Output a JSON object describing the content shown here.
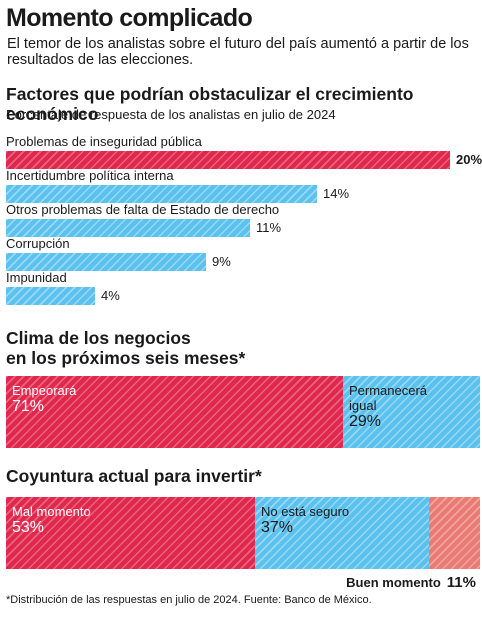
{
  "header": {
    "title": "Momento complicado",
    "subtitle": "El temor de los analistas sobre el futuro del país aumentó a partir de los resultados de las elecciones."
  },
  "chart_data": [
    {
      "type": "bar",
      "orientation": "horizontal",
      "title": "Factores que podrían obstaculizar el crecimiento económico",
      "subtitle": "Porcentaje de respuesta de los analistas en julio de 2024",
      "categories": [
        "Problemas de inseguridad pública",
        "Incertidumbre política interna",
        "Otros problemas de falta de Estado de derecho",
        "Corrupción",
        "Impunidad"
      ],
      "values": [
        20,
        14,
        11,
        9,
        4
      ],
      "value_labels": [
        "20%",
        "14%",
        "11%",
        "9%",
        "4%"
      ],
      "colors": [
        "#e0284c",
        "#5bc1ee",
        "#5bc1ee",
        "#5bc1ee",
        "#5bc1ee"
      ],
      "xlim": [
        0,
        20
      ]
    },
    {
      "type": "bar",
      "orientation": "stacked-horizontal",
      "title": "Clima de los negocios en los próximos seis meses*",
      "title_lines": [
        "Clima de los negocios",
        "en los próximos seis meses*"
      ],
      "series": [
        {
          "name": "Empeorará",
          "value": 71,
          "value_label": "71%",
          "color": "#e0284c"
        },
        {
          "name": "Permanecerá igual",
          "name_lines": [
            "Permanecerá",
            "igual"
          ],
          "value": 29,
          "value_label": "29%",
          "color": "#5bc1ee"
        }
      ],
      "total": 100
    },
    {
      "type": "bar",
      "orientation": "stacked-horizontal",
      "title": "Coyuntura actual para invertir*",
      "series": [
        {
          "name": "Mal momento",
          "value": 53,
          "value_label": "53%",
          "color": "#e0284c"
        },
        {
          "name": "No está seguro",
          "value": 37,
          "value_label": "37%",
          "color": "#5bc1ee"
        },
        {
          "name": "Buen momento",
          "value": 11,
          "value_label": "11%",
          "color": "#ea7a74"
        }
      ],
      "total": 101
    }
  ],
  "footnote": "*Distribución de las respuestas en julio de 2024. Fuente: Banco de México."
}
